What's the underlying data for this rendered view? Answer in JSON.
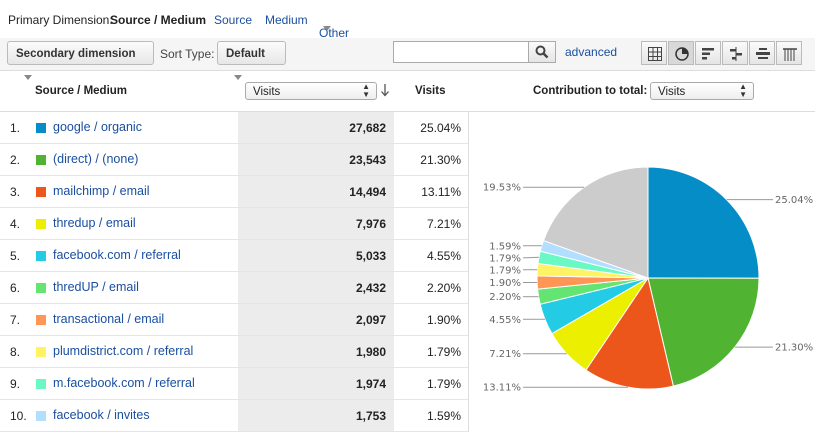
{
  "primary_dimension": {
    "label": "Primary Dimension:",
    "active": "Source / Medium",
    "links": [
      "Source",
      "Medium"
    ],
    "other": "Other"
  },
  "toolbar": {
    "secondary_dimension": "Secondary dimension",
    "sort_type_label": "Sort Type:",
    "sort_type_value": "Default",
    "search_placeholder": "",
    "advanced": "advanced",
    "view_icons": [
      "data-table-icon",
      "pie-chart-icon",
      "performance-icon",
      "comparison-icon",
      "term-cloud-icon",
      "pivot-icon"
    ]
  },
  "table_header": {
    "dimension": "Source / Medium",
    "metric_select": "Visits",
    "metric": "Visits",
    "contribution_label": "Contribution to total:",
    "contribution_select": "Visits"
  },
  "rows": [
    {
      "num": "1.",
      "name": "google / organic",
      "visits": "27,682",
      "pct": "25.04%",
      "color": "#058dc7"
    },
    {
      "num": "2.",
      "name": "(direct) / (none)",
      "visits": "23,543",
      "pct": "21.30%",
      "color": "#50b432"
    },
    {
      "num": "3.",
      "name": "mailchimp / email",
      "visits": "14,494",
      "pct": "13.11%",
      "color": "#ed561b"
    },
    {
      "num": "4.",
      "name": "thredup / email",
      "visits": "7,976",
      "pct": "7.21%",
      "color": "#edef00"
    },
    {
      "num": "5.",
      "name": "facebook.com / referral",
      "visits": "5,033",
      "pct": "4.55%",
      "color": "#24cbe5"
    },
    {
      "num": "6.",
      "name": "thredUP / email",
      "visits": "2,432",
      "pct": "2.20%",
      "color": "#64e572"
    },
    {
      "num": "7.",
      "name": "transactional / email",
      "visits": "2,097",
      "pct": "1.90%",
      "color": "#ff9655"
    },
    {
      "num": "8.",
      "name": "plumdistrict.com / referral",
      "visits": "1,980",
      "pct": "1.79%",
      "color": "#fff263"
    },
    {
      "num": "9.",
      "name": "m.facebook.com / referral",
      "visits": "1,974",
      "pct": "1.79%",
      "color": "#6af9c4"
    },
    {
      "num": "10.",
      "name": "facebook / invites",
      "visits": "1,753",
      "pct": "1.59%",
      "color": "#b2deff"
    }
  ],
  "chart_data": {
    "type": "pie",
    "slices": [
      {
        "label": "25.04%",
        "value": 25.04,
        "color": "#058dc7"
      },
      {
        "label": "21.30%",
        "value": 21.3,
        "color": "#50b432"
      },
      {
        "label": "13.11%",
        "value": 13.11,
        "color": "#ed561b"
      },
      {
        "label": "7.21%",
        "value": 7.21,
        "color": "#edef00"
      },
      {
        "label": "4.55%",
        "value": 4.55,
        "color": "#24cbe5"
      },
      {
        "label": "2.20%",
        "value": 2.2,
        "color": "#64e572"
      },
      {
        "label": "1.90%",
        "value": 1.9,
        "color": "#ff9655"
      },
      {
        "label": "1.79%",
        "value": 1.79,
        "color": "#fff263"
      },
      {
        "label": "1.79%",
        "value": 1.79,
        "color": "#6af9c4"
      },
      {
        "label": "1.59%",
        "value": 1.59,
        "color": "#b2deff"
      },
      {
        "label": "19.53%",
        "value": 19.53,
        "color": "#cccccc"
      }
    ]
  }
}
